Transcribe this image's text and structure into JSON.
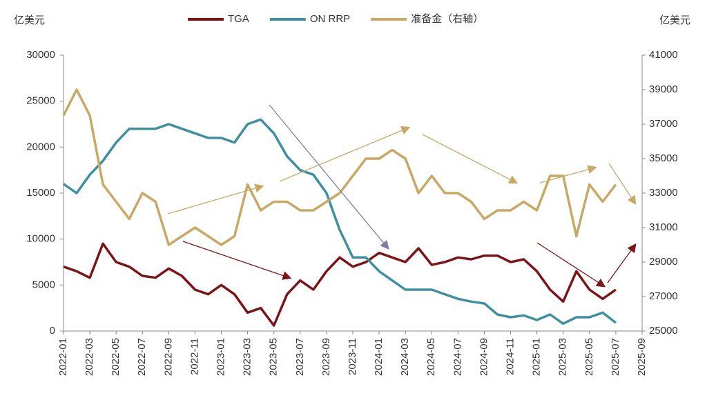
{
  "chart_data": {
    "type": "line",
    "y_label": "亿美元",
    "y2_label": "亿美元",
    "x": [
      "2022-01",
      "2022-02",
      "2022-03",
      "2022-04",
      "2022-05",
      "2022-06",
      "2022-07",
      "2022-08",
      "2022-09",
      "2022-10",
      "2022-11",
      "2022-12",
      "2023-01",
      "2023-02",
      "2023-03",
      "2023-04",
      "2023-05",
      "2023-06",
      "2023-07",
      "2023-08",
      "2023-09",
      "2023-10",
      "2023-11",
      "2023-12",
      "2024-01",
      "2024-02",
      "2024-03",
      "2024-04",
      "2024-05",
      "2024-06",
      "2024-07",
      "2024-08",
      "2024-09",
      "2024-10",
      "2024-11",
      "2024-12",
      "2025-01",
      "2025-02",
      "2025-03",
      "2025-04",
      "2025-05",
      "2025-06",
      "2025-07"
    ],
    "series": [
      {
        "name": "TGA",
        "color": "#7b1416",
        "values": [
          7000,
          6500,
          5800,
          9500,
          7500,
          7000,
          6000,
          5800,
          6800,
          6000,
          4500,
          4000,
          5000,
          4000,
          2000,
          2500,
          600,
          4000,
          5500,
          4500,
          6500,
          8000,
          7000,
          7500,
          8500,
          8000,
          7500,
          9000,
          7200,
          7500,
          8000,
          7800,
          8200,
          8200,
          7500,
          7800,
          6500,
          4500,
          3200,
          6500,
          4500,
          3500,
          4500
        ]
      },
      {
        "name": "ON RRP",
        "color": "#3e8fa0",
        "values": [
          16000,
          15000,
          17000,
          18500,
          20500,
          22000,
          22000,
          22000,
          22500,
          22000,
          21500,
          21000,
          21000,
          20500,
          22500,
          23000,
          21500,
          19000,
          17500,
          17000,
          15000,
          11000,
          8000,
          8000,
          6500,
          5500,
          4500,
          4500,
          4500,
          4000,
          3500,
          3200,
          3000,
          1800,
          1500,
          1700,
          1200,
          1800,
          800,
          1500,
          1500,
          2000,
          900
        ]
      },
      {
        "name": "准备金（右轴）",
        "color": "#c8a865",
        "axis": "y2",
        "values": [
          37500,
          39000,
          37500,
          33500,
          32500,
          31500,
          33000,
          32500,
          30000,
          30500,
          31000,
          30500,
          30000,
          30500,
          33500,
          32000,
          32500,
          32500,
          32000,
          32000,
          32500,
          33000,
          34000,
          35000,
          35000,
          35500,
          35000,
          33000,
          34000,
          33000,
          33000,
          32500,
          31500,
          32000,
          32000,
          32500,
          32000,
          34000,
          34000,
          30500,
          33500,
          32500,
          33500
        ]
      }
    ],
    "xticks": [
      "2022-01",
      "2022-03",
      "2022-05",
      "2022-07",
      "2022-09",
      "2022-11",
      "2023-01",
      "2023-03",
      "2023-05",
      "2023-07",
      "2023-09",
      "2023-11",
      "2024-01",
      "2024-03",
      "2024-05",
      "2024-07",
      "2024-09",
      "2024-11",
      "2025-01",
      "2025-03",
      "2025-05",
      "2025-07",
      "2025-09"
    ],
    "ylim": [
      0,
      30000
    ],
    "yticks": [
      0,
      5000,
      10000,
      15000,
      20000,
      25000,
      30000
    ],
    "y2lim": [
      25000,
      41000
    ],
    "y2ticks": [
      25000,
      27000,
      29000,
      31000,
      33000,
      35000,
      37000,
      39000,
      41000
    ],
    "legend": "top"
  }
}
